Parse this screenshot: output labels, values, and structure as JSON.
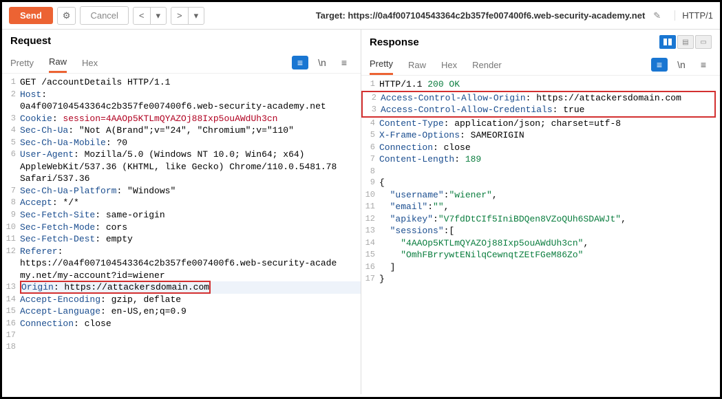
{
  "toolbar": {
    "send": "Send",
    "cancel": "Cancel",
    "target_label": "Target: https://0a4f007104543364c2b357fe007400f6.web-security-academy.net",
    "http_version": "HTTP/1"
  },
  "request": {
    "title": "Request",
    "tabs": [
      "Pretty",
      "Raw",
      "Hex"
    ],
    "active_tab": "Raw",
    "highlighted_line": 13,
    "lines": [
      {
        "n": 1,
        "seg": [
          {
            "t": "GET /accountDetails HTTP/1.1",
            "c": ""
          }
        ]
      },
      {
        "n": 2,
        "seg": [
          {
            "t": "Host",
            "c": "hl-header"
          },
          {
            "t": ": ",
            "c": ""
          }
        ]
      },
      {
        "n": 0,
        "seg": [
          {
            "t": "0a4f007104543364c2b357fe007400f6.web-security-academy.net",
            "c": ""
          }
        ]
      },
      {
        "n": 3,
        "seg": [
          {
            "t": "Cookie",
            "c": "hl-header"
          },
          {
            "t": ": ",
            "c": ""
          },
          {
            "t": "session=4AAOp5KTLmQYAZOj88Ixp5ouAWdUh3cn",
            "c": "hl-cookie"
          }
        ]
      },
      {
        "n": 4,
        "seg": [
          {
            "t": "Sec-Ch-Ua",
            "c": "hl-header"
          },
          {
            "t": ": ",
            "c": ""
          },
          {
            "t": "\"Not A(Brand\";v=\"24\", \"Chromium\";v=\"110\"",
            "c": ""
          }
        ]
      },
      {
        "n": 5,
        "seg": [
          {
            "t": "Sec-Ch-Ua-Mobile",
            "c": "hl-header"
          },
          {
            "t": ": ",
            "c": ""
          },
          {
            "t": "?0",
            "c": ""
          }
        ]
      },
      {
        "n": 6,
        "seg": [
          {
            "t": "User-Agent",
            "c": "hl-header"
          },
          {
            "t": ": ",
            "c": ""
          },
          {
            "t": "Mozilla/5.0 (Windows NT 10.0; Win64; x64) ",
            "c": ""
          }
        ]
      },
      {
        "n": 0,
        "seg": [
          {
            "t": "AppleWebKit/537.36 (KHTML, like Gecko) Chrome/110.0.5481.78 ",
            "c": ""
          }
        ]
      },
      {
        "n": 0,
        "seg": [
          {
            "t": "Safari/537.36",
            "c": ""
          }
        ]
      },
      {
        "n": 7,
        "seg": [
          {
            "t": "Sec-Ch-Ua-Platform",
            "c": "hl-header"
          },
          {
            "t": ": ",
            "c": ""
          },
          {
            "t": "\"Windows\"",
            "c": ""
          }
        ]
      },
      {
        "n": 8,
        "seg": [
          {
            "t": "Accept",
            "c": "hl-header"
          },
          {
            "t": ": ",
            "c": ""
          },
          {
            "t": "*/*",
            "c": ""
          }
        ]
      },
      {
        "n": 9,
        "seg": [
          {
            "t": "Sec-Fetch-Site",
            "c": "hl-header"
          },
          {
            "t": ": ",
            "c": ""
          },
          {
            "t": "same-origin",
            "c": ""
          }
        ]
      },
      {
        "n": 10,
        "seg": [
          {
            "t": "Sec-Fetch-Mode",
            "c": "hl-header"
          },
          {
            "t": ": ",
            "c": ""
          },
          {
            "t": "cors",
            "c": ""
          }
        ]
      },
      {
        "n": 11,
        "seg": [
          {
            "t": "Sec-Fetch-Dest",
            "c": "hl-header"
          },
          {
            "t": ": ",
            "c": ""
          },
          {
            "t": "empty",
            "c": ""
          }
        ]
      },
      {
        "n": 12,
        "seg": [
          {
            "t": "Referer",
            "c": "hl-header"
          },
          {
            "t": ": ",
            "c": ""
          }
        ]
      },
      {
        "n": 0,
        "seg": [
          {
            "t": "https://0a4f007104543364c2b357fe007400f6.web-security-acade",
            "c": ""
          }
        ]
      },
      {
        "n": 0,
        "seg": [
          {
            "t": "my.net/my-account?id=wiener",
            "c": ""
          }
        ]
      },
      {
        "n": 13,
        "seg": [
          {
            "t": "Origin",
            "c": "hl-header"
          },
          {
            "t": ": ",
            "c": ""
          },
          {
            "t": "https://attackersdomain.com",
            "c": ""
          }
        ],
        "boxed": true
      },
      {
        "n": 14,
        "seg": [
          {
            "t": "Accept-Encoding",
            "c": "hl-header"
          },
          {
            "t": ": ",
            "c": ""
          },
          {
            "t": "gzip, deflate",
            "c": ""
          }
        ]
      },
      {
        "n": 15,
        "seg": [
          {
            "t": "Accept-Language",
            "c": "hl-header"
          },
          {
            "t": ": ",
            "c": ""
          },
          {
            "t": "en-US,en;q=0.9",
            "c": ""
          }
        ]
      },
      {
        "n": 16,
        "seg": [
          {
            "t": "Connection",
            "c": "hl-header"
          },
          {
            "t": ": ",
            "c": ""
          },
          {
            "t": "close",
            "c": ""
          }
        ]
      },
      {
        "n": 17,
        "seg": []
      },
      {
        "n": 18,
        "seg": []
      }
    ]
  },
  "response": {
    "title": "Response",
    "tabs": [
      "Pretty",
      "Raw",
      "Hex",
      "Render"
    ],
    "active_tab": "Pretty",
    "boxed_lines": [
      2,
      3
    ],
    "lines": [
      {
        "n": 1,
        "seg": [
          {
            "t": "HTTP/1.1 ",
            "c": ""
          },
          {
            "t": "200 OK",
            "c": "hl-value"
          }
        ]
      },
      {
        "n": 2,
        "seg": [
          {
            "t": "Access-Control-Allow-Origin",
            "c": "hl-header"
          },
          {
            "t": ": ",
            "c": ""
          },
          {
            "t": "https://attackersdomain.com",
            "c": ""
          }
        ]
      },
      {
        "n": 3,
        "seg": [
          {
            "t": "Access-Control-Allow-Credentials",
            "c": "hl-header"
          },
          {
            "t": ": ",
            "c": ""
          },
          {
            "t": "true",
            "c": ""
          }
        ]
      },
      {
        "n": 4,
        "seg": [
          {
            "t": "Content-Type",
            "c": "hl-header"
          },
          {
            "t": ": ",
            "c": ""
          },
          {
            "t": "application/json; charset=utf-8",
            "c": ""
          }
        ]
      },
      {
        "n": 5,
        "seg": [
          {
            "t": "X-Frame-Options",
            "c": "hl-header"
          },
          {
            "t": ": ",
            "c": ""
          },
          {
            "t": "SAMEORIGIN",
            "c": ""
          }
        ]
      },
      {
        "n": 6,
        "seg": [
          {
            "t": "Connection",
            "c": "hl-header"
          },
          {
            "t": ": ",
            "c": ""
          },
          {
            "t": "close",
            "c": ""
          }
        ]
      },
      {
        "n": 7,
        "seg": [
          {
            "t": "Content-Length",
            "c": "hl-header"
          },
          {
            "t": ": ",
            "c": ""
          },
          {
            "t": "189",
            "c": "hl-num"
          }
        ]
      },
      {
        "n": 8,
        "seg": []
      },
      {
        "n": 9,
        "seg": [
          {
            "t": "{",
            "c": ""
          }
        ]
      },
      {
        "n": 10,
        "seg": [
          {
            "t": "  ",
            "c": ""
          },
          {
            "t": "\"username\"",
            "c": "hl-key"
          },
          {
            "t": ":",
            "c": ""
          },
          {
            "t": "\"wiener\"",
            "c": "hl-value"
          },
          {
            "t": ",",
            "c": ""
          }
        ]
      },
      {
        "n": 11,
        "seg": [
          {
            "t": "  ",
            "c": ""
          },
          {
            "t": "\"email\"",
            "c": "hl-key"
          },
          {
            "t": ":",
            "c": ""
          },
          {
            "t": "\"\"",
            "c": "hl-value"
          },
          {
            "t": ",",
            "c": ""
          }
        ]
      },
      {
        "n": 12,
        "seg": [
          {
            "t": "  ",
            "c": ""
          },
          {
            "t": "\"apikey\"",
            "c": "hl-key"
          },
          {
            "t": ":",
            "c": ""
          },
          {
            "t": "\"V7fdDtCIf5IniBDQen8VZoQUh6SDAWJt\"",
            "c": "hl-value"
          },
          {
            "t": ",",
            "c": ""
          }
        ]
      },
      {
        "n": 13,
        "seg": [
          {
            "t": "  ",
            "c": ""
          },
          {
            "t": "\"sessions\"",
            "c": "hl-key"
          },
          {
            "t": ":[",
            "c": ""
          }
        ]
      },
      {
        "n": 14,
        "seg": [
          {
            "t": "    ",
            "c": ""
          },
          {
            "t": "\"4AAOp5KTLmQYAZOj88Ixp5ouAWdUh3cn\"",
            "c": "hl-value"
          },
          {
            "t": ",",
            "c": ""
          }
        ]
      },
      {
        "n": 15,
        "seg": [
          {
            "t": "    ",
            "c": ""
          },
          {
            "t": "\"OmhFBrrywtENilqCewnqtZEtFGeM86Zo\"",
            "c": "hl-value"
          }
        ]
      },
      {
        "n": 16,
        "seg": [
          {
            "t": "  ]",
            "c": ""
          }
        ]
      },
      {
        "n": 17,
        "seg": [
          {
            "t": "}",
            "c": ""
          }
        ]
      }
    ]
  }
}
